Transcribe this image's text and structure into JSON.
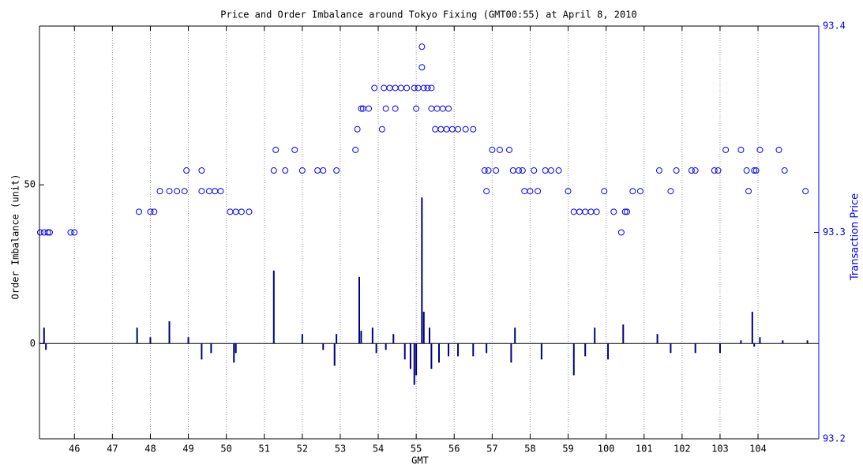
{
  "chart_data": {
    "type": "combo",
    "title": "Price and Order Imbalance around Tokyo Fixing (GMT00:55) at April 8, 2010",
    "xlabel": "GMT",
    "ylabel": "Order Imbalance (unit)",
    "y2label": "Transaction Price",
    "xlim": [
      45.08,
      65.6
    ],
    "xticks": [
      46,
      47,
      48,
      49,
      50,
      51,
      52,
      53,
      54,
      55,
      56,
      57,
      58,
      59,
      {
        "value": 60,
        "label": "100"
      },
      {
        "value": 61,
        "label": "101"
      },
      {
        "value": 62,
        "label": "102"
      },
      {
        "value": 63,
        "label": "103"
      },
      {
        "value": 64,
        "label": "104"
      }
    ],
    "ylim": [
      -30,
      100
    ],
    "yticks": [
      0,
      50
    ],
    "y2lim": [
      93.2,
      93.4
    ],
    "y2ticks": [
      93.2,
      93.3,
      93.4
    ],
    "grid": true,
    "series": [
      {
        "type": "bar",
        "color": "#000080",
        "x": [
          45.2,
          45.25,
          47.65,
          48.0,
          48.5,
          49.0,
          49.35,
          49.6,
          50.2,
          50.25,
          51.25,
          52.0,
          52.55,
          52.85,
          52.9,
          53.5,
          53.55,
          53.85,
          53.95,
          54.2,
          54.4,
          54.7,
          54.85,
          54.95,
          55.0,
          55.15,
          55.2,
          55.35,
          55.4,
          55.6,
          55.85,
          56.1,
          56.5,
          56.85,
          57.5,
          57.6,
          58.3,
          59.15,
          59.45,
          59.7,
          60.05,
          60.45,
          61.35,
          61.7,
          62.35,
          63.0,
          63.55,
          63.85,
          63.9,
          64.05,
          64.65,
          65.3
        ],
        "values": [
          5,
          -2,
          5,
          2,
          7,
          2,
          -5,
          -3,
          -6,
          -3,
          23,
          3,
          -2,
          -7,
          3,
          21,
          4,
          5,
          -3,
          -2,
          3,
          -5,
          -8,
          -13,
          -10,
          46,
          10,
          5,
          -8,
          -6,
          -4,
          -4,
          -4,
          -3,
          -6,
          5,
          -5,
          -10,
          -4,
          5,
          -5,
          6,
          3,
          -3,
          -3,
          -3,
          1,
          10,
          -1,
          2,
          1,
          1
        ]
      },
      {
        "type": "scatter",
        "axis": "y2",
        "color": "#0000ff",
        "x": [
          45.1,
          45.2,
          45.3,
          45.35,
          45.9,
          46.0,
          47.7,
          48.0,
          48.1,
          48.25,
          48.5,
          48.7,
          48.9,
          48.95,
          49.35,
          49.35,
          49.55,
          49.7,
          49.85,
          50.1,
          50.25,
          50.4,
          50.6,
          51.3,
          51.25,
          51.55,
          51.8,
          52.0,
          52.4,
          52.55,
          52.9,
          53.4,
          53.45,
          53.55,
          53.6,
          53.75,
          53.9,
          54.1,
          54.15,
          54.2,
          54.3,
          54.45,
          54.6,
          54.75,
          54.45,
          55.0,
          54.95,
          55.05,
          55.2,
          55.15,
          55.15,
          55.3,
          55.4,
          55.4,
          55.55,
          55.7,
          55.85,
          55.5,
          55.65,
          55.8,
          55.95,
          56.1,
          56.3,
          56.5,
          56.8,
          56.9,
          56.85,
          57.0,
          57.2,
          57.1,
          57.45,
          57.55,
          57.7,
          57.8,
          57.85,
          58.0,
          58.2,
          58.1,
          58.4,
          58.55,
          58.75,
          59.0,
          59.15,
          59.3,
          59.45,
          59.6,
          59.75,
          59.95,
          60.2,
          60.4,
          60.5,
          60.55,
          60.7,
          60.9,
          61.4,
          61.7,
          61.85,
          62.25,
          62.35,
          62.85,
          62.95,
          63.15,
          63.55,
          63.7,
          63.75,
          63.9,
          63.95,
          64.05,
          64.55,
          64.7,
          65.25
        ],
        "values": [
          93.3,
          93.3,
          93.3,
          93.3,
          93.3,
          93.3,
          93.31,
          93.31,
          93.31,
          93.32,
          93.32,
          93.32,
          93.32,
          93.33,
          93.33,
          93.32,
          93.32,
          93.32,
          93.32,
          93.31,
          93.31,
          93.31,
          93.31,
          93.34,
          93.33,
          93.33,
          93.34,
          93.33,
          93.33,
          93.33,
          93.33,
          93.34,
          93.35,
          93.36,
          93.36,
          93.36,
          93.37,
          93.35,
          93.37,
          93.36,
          93.37,
          93.37,
          93.37,
          93.37,
          93.36,
          93.36,
          93.37,
          93.37,
          93.37,
          93.38,
          93.39,
          93.37,
          93.37,
          93.36,
          93.36,
          93.36,
          93.36,
          93.35,
          93.35,
          93.35,
          93.35,
          93.35,
          93.35,
          93.35,
          93.33,
          93.33,
          93.32,
          93.34,
          93.34,
          93.33,
          93.34,
          93.33,
          93.33,
          93.33,
          93.32,
          93.32,
          93.32,
          93.33,
          93.33,
          93.33,
          93.33,
          93.32,
          93.31,
          93.31,
          93.31,
          93.31,
          93.31,
          93.32,
          93.31,
          93.3,
          93.31,
          93.31,
          93.32,
          93.32,
          93.33,
          93.32,
          93.33,
          93.33,
          93.33,
          93.33,
          93.33,
          93.34,
          93.34,
          93.33,
          93.32,
          93.33,
          93.33,
          93.34,
          93.34,
          93.33,
          93.32
        ]
      }
    ]
  }
}
